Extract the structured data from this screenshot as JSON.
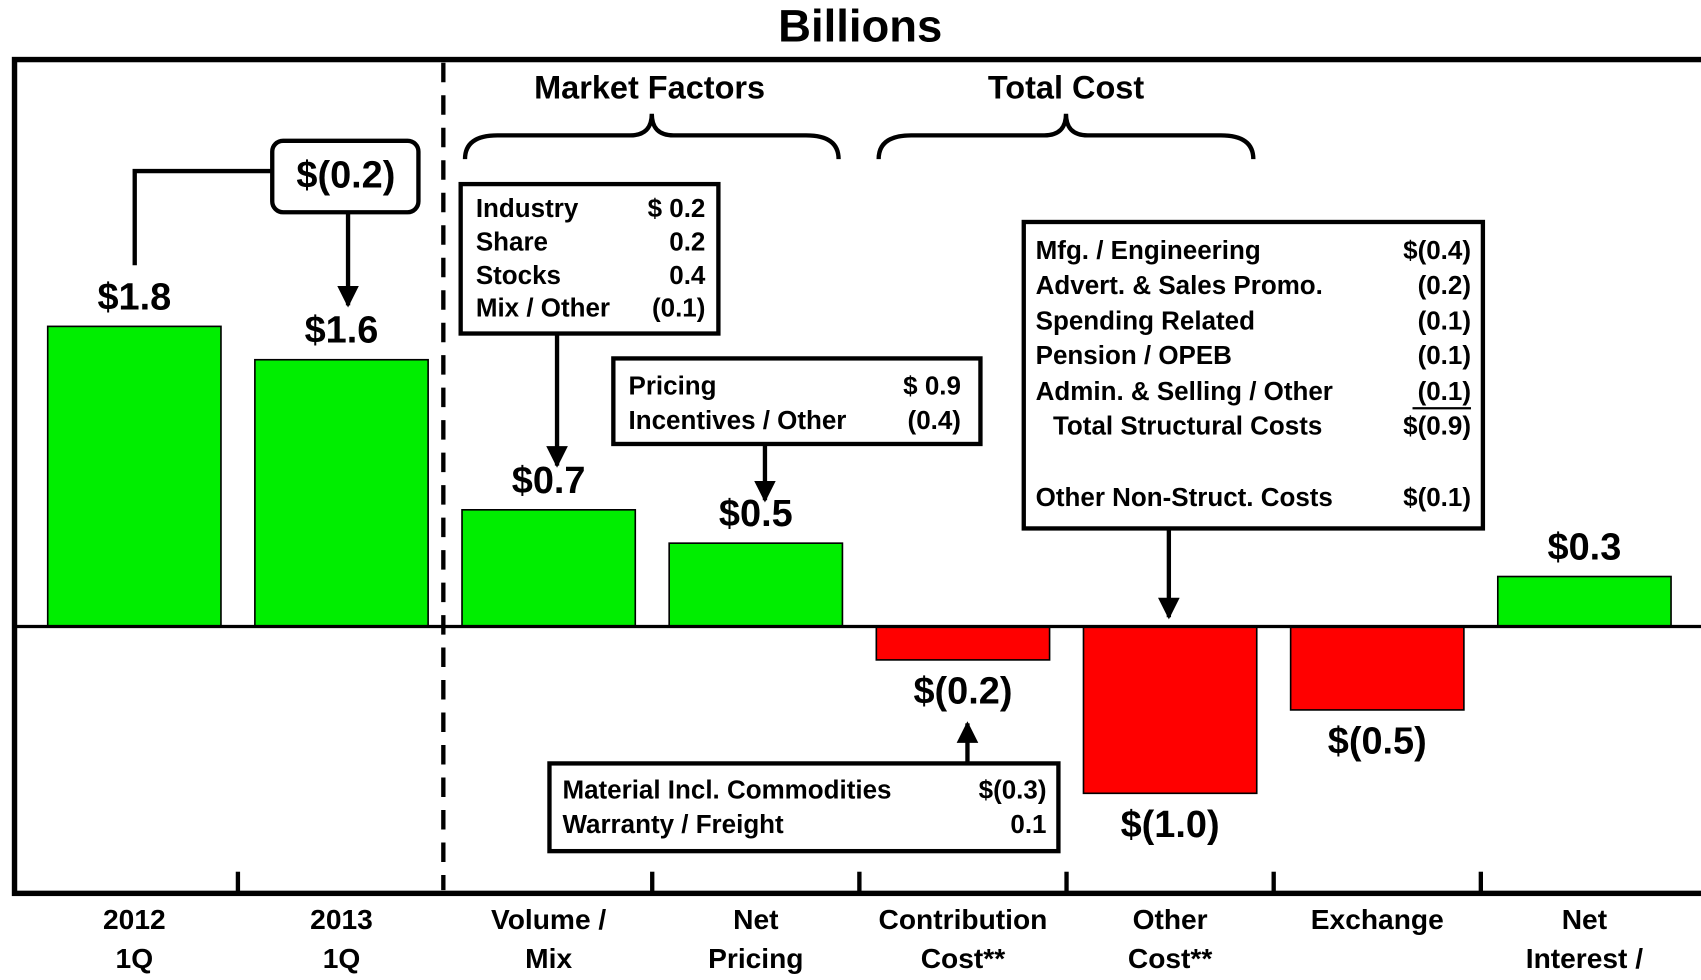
{
  "chart_data": {
    "type": "bar",
    "title": "Billions",
    "categories": [
      [
        "2012",
        "1Q"
      ],
      [
        "2013",
        "1Q"
      ],
      [
        "Volume /",
        "Mix"
      ],
      [
        "Net",
        "Pricing"
      ],
      [
        "Contribution",
        "Cost**"
      ],
      [
        "Other",
        "Cost**"
      ],
      [
        "Exchange"
      ],
      [
        "Net",
        "Interest /"
      ]
    ],
    "values": [
      1.8,
      1.6,
      0.7,
      0.5,
      -0.2,
      -1.0,
      -0.5,
      0.3
    ],
    "value_labels": [
      "$1.8",
      "$1.6",
      "$0.7",
      "$0.5",
      "$(0.2)",
      "$(1.0)",
      "$(0.5)",
      "$0.3"
    ],
    "positive_color": "#00ee00",
    "negative_color": "#ff0000",
    "ylim": [
      -1.6,
      3.4
    ],
    "annotations": {
      "change_label": "$(0.2)",
      "brackets": [
        "Market Factors",
        "Total Cost"
      ],
      "boxes": [
        {
          "rows": [
            [
              "Industry",
              "$ 0.2"
            ],
            [
              "Share",
              "0.2"
            ],
            [
              "Stocks",
              "0.4"
            ],
            [
              "Mix / Other",
              "(0.1)"
            ]
          ]
        },
        {
          "rows": [
            [
              "Pricing",
              "$ 0.9"
            ],
            [
              "Incentives / Other",
              "(0.4)"
            ]
          ]
        },
        {
          "rows": [
            [
              "Material Incl. Commodities",
              "$(0.3)"
            ],
            [
              "Warranty / Freight",
              "0.1"
            ]
          ]
        },
        {
          "rows": [
            [
              "Mfg. / Engineering",
              "$(0.4)"
            ],
            [
              "Advert. & Sales Promo.",
              "(0.2)"
            ],
            [
              "Spending Related",
              "(0.1)"
            ],
            [
              "Pension / OPEB",
              "(0.1)"
            ],
            [
              "Admin. & Selling / Other",
              "(0.1)"
            ],
            [
              "Total Structural Costs",
              "$(0.9)"
            ]
          ],
          "extra_rows": [
            [
              "Other Non-Struct. Costs",
              "$(0.1)"
            ]
          ]
        }
      ]
    }
  }
}
